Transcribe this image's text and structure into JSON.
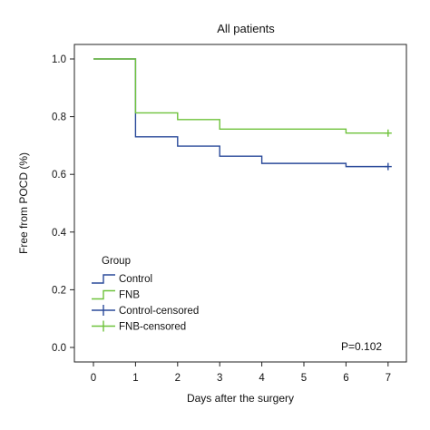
{
  "chart_data": {
    "type": "line",
    "title": "All patients",
    "xlabel": "Days after the surgery",
    "ylabel": "Free from POCD (%)",
    "xlim": [
      0,
      7
    ],
    "ylim": [
      0,
      1.0
    ],
    "x_ticks": [
      "0",
      "1",
      "2",
      "3",
      "4",
      "5",
      "6",
      "7"
    ],
    "y_ticks": [
      "0.0",
      "0.2",
      "0.4",
      "0.6",
      "0.8",
      "1.0"
    ],
    "step": true,
    "grid": false,
    "legend_title": "Group",
    "legend_position": "bottom-left",
    "annotation": "P=0.102",
    "series": [
      {
        "name": "Control",
        "color": "#2a4a9a",
        "x": [
          0,
          1,
          2,
          3,
          4,
          6,
          7
        ],
        "y": [
          1.0,
          0.73,
          0.698,
          0.663,
          0.638,
          0.627,
          0.627
        ]
      },
      {
        "name": "FNB",
        "color": "#6ec23a",
        "x": [
          0,
          1,
          2,
          3,
          6,
          7
        ],
        "y": [
          1.0,
          0.813,
          0.79,
          0.757,
          0.743,
          0.743
        ]
      }
    ],
    "censored": [
      {
        "name": "Control-censored",
        "color": "#2a4a9a",
        "x": [
          7
        ],
        "y": [
          0.627
        ]
      },
      {
        "name": "FNB-censored",
        "color": "#6ec23a",
        "x": [
          7
        ],
        "y": [
          0.743
        ]
      }
    ]
  }
}
